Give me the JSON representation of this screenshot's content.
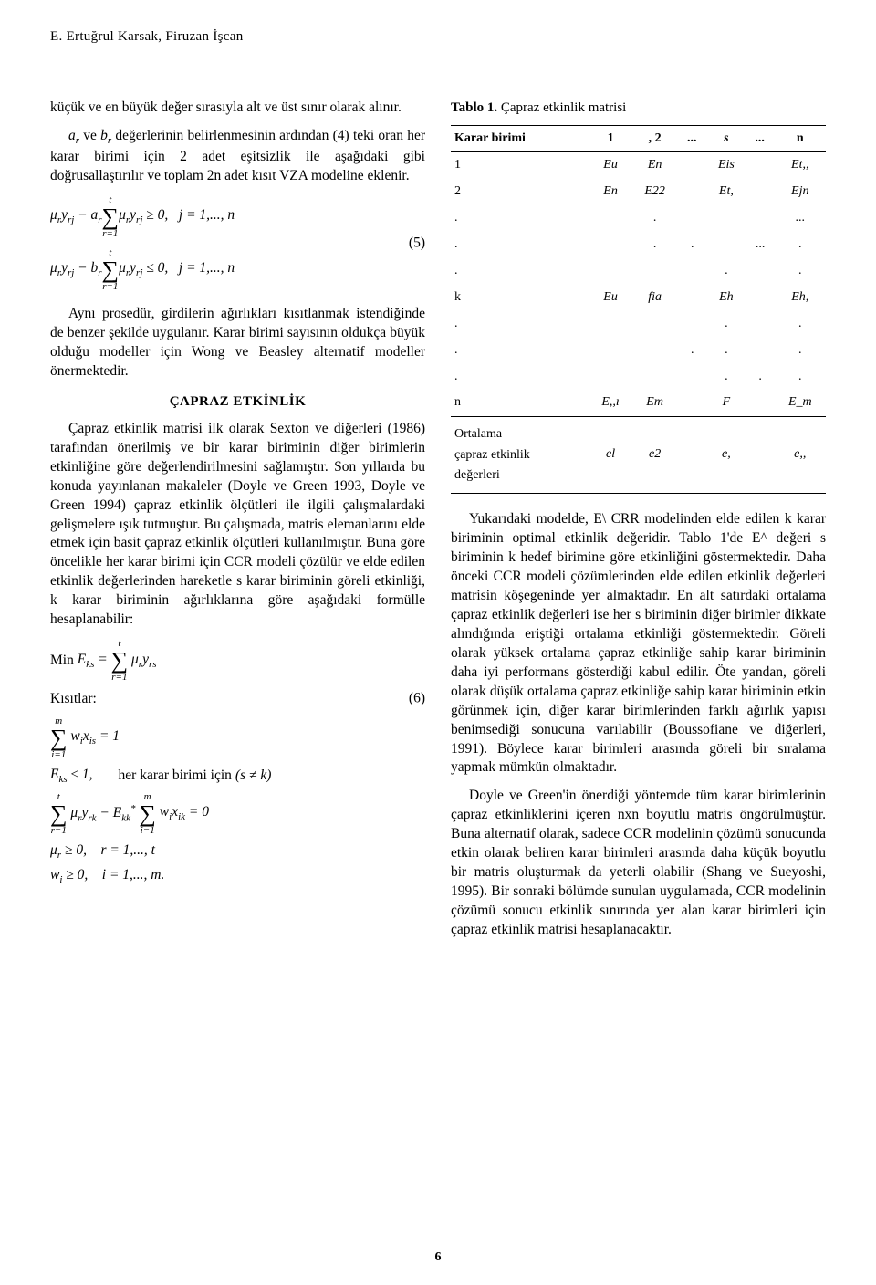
{
  "header": {
    "authors": "E. Ertuğrul Karsak, Firuzan İşcan"
  },
  "left": {
    "p1": "küçük ve en büyük değer sırasıyla alt ve üst sınır olarak alınır.",
    "p2_a": "a",
    "p2_b": "b",
    "p2_rest": " değerlerinin belirlenmesinin ardından (4) teki oran her karar birimi için 2 adet eşitsizlik ile aşağıdaki gibi doğrusallaştırılır ve toplam 2n adet kısıt VZA modeline eklenir.",
    "p2_ve": " ve ",
    "eq5_num": "(5)",
    "p3": "Aynı prosedür, girdilerin ağırlıkları kısıtlanmak istendiğinde de benzer şekilde uygulanır. Karar birimi sayısının oldukça büyük olduğu modeller için Wong ve Beasley alternatif modeller önermektedir.",
    "section": "ÇAPRAZ ETKİNLİK",
    "p4": "Çapraz etkinlik matrisi ilk olarak Sexton ve diğerleri (1986) tarafından önerilmiş ve bir karar biriminin diğer birimlerin etkinliğine göre değerlendirilmesini sağlamıştır. Son yıllarda bu konuda yayınlanan makaleler (Doyle ve Green 1993, Doyle ve Green 1994) çapraz etkinlik ölçütleri ile ilgili çalışmalardaki gelişmelere ışık tutmuştur. Bu çalışmada, matris elemanlarını elde etmek için basit çapraz etkinlik ölçütleri kullanılmıştır. Buna göre öncelikle her karar birimi için CCR modeli çözülür ve elde edilen etkinlik değerlerinden hareketle s karar biriminin göreli etkinliği, k karar biriminin ağırlıklarına göre aşağıdaki formülle hesaplanabilir:",
    "kisitlar": "Kısıtlar:",
    "eq6_num": "(6)",
    "her_karar": "her karar birimi için",
    "sne_k": "(s ≠ k)"
  },
  "right": {
    "table_caption_bold": "Tablo 1.",
    "table_caption_rest": " Çapraz etkinlik matrisi",
    "table": {
      "header": [
        "Karar birimi",
        "1",
        ", 2",
        "...",
        "s",
        "...",
        "n"
      ],
      "rows": [
        [
          "1",
          "Eu",
          "En",
          "",
          "Eis",
          "",
          "Et,,"
        ],
        [
          "2",
          "En",
          "E22",
          "",
          "Et,",
          "",
          "Ejn"
        ],
        [
          ".",
          "",
          ".",
          "",
          "",
          "",
          "..."
        ],
        [
          ".",
          "",
          ".",
          ".",
          "",
          "...",
          "."
        ],
        [
          ".",
          "",
          "",
          "",
          ".",
          "",
          "."
        ],
        [
          "k",
          "Eu",
          "fia",
          "",
          "Eh",
          "",
          "Eh,"
        ],
        [
          ".",
          "",
          "",
          "",
          ".",
          "",
          "."
        ],
        [
          ".",
          "",
          "",
          ".",
          ".",
          "",
          "."
        ],
        [
          ".",
          "",
          "",
          "",
          ".",
          ".",
          "."
        ],
        [
          "n",
          "E,,ı",
          "Em",
          "",
          "F",
          "",
          "E_m"
        ]
      ],
      "avg_label": "Ortalama çapraz etkinlik değerleri",
      "avg_row": [
        "el",
        "e2",
        "",
        "e,",
        "",
        "e,,"
      ]
    },
    "p1": "Yukarıdaki modelde, E\\ CRR modelinden elde edilen k karar biriminin optimal etkinlik değeridir. Tablo 1'de E^ değeri s biriminin k hedef birimine göre etkinliğini göstermektedir. Daha önceki CCR modeli çözümlerinden elde edilen etkinlik değerleri matrisin köşegeninde yer almaktadır. En alt satırdaki ortalama çapraz etkinlik değerleri ise her s biriminin diğer birimler dikkate alındığında eriştiği ortalama etkinliği göstermektedir. Göreli olarak yüksek ortalama çapraz etkinliğe sahip karar biriminin daha iyi performans gösterdiği kabul edilir. Öte yandan, göreli olarak düşük ortalama çapraz etkinliğe sahip karar biriminin etkin görünmek için, diğer karar birimlerinden farklı ağırlık yapısı benimsediği sonucuna varılabilir (Boussofiane ve diğerleri, 1991). Böylece karar birimleri arasında göreli bir sıralama yapmak mümkün olmaktadır.",
    "p2": "Doyle ve Green'in önerdiği yöntemde tüm karar birimlerinin çapraz etkinliklerini içeren nxn boyutlu matris öngörülmüştür. Buna alternatif olarak, sadece CCR modelinin çözümü sonucunda etkin olarak beliren karar birimleri arasında daha küçük boyutlu bir matris oluşturmak da yeterli olabilir (Shang ve Sueyoshi, 1995). Bir sonraki bölümde sunulan uygulamada, CCR modelinin çözümü sonucu etkinlik sınırında yer alan karar birimleri için çapraz etkinlik matrisi hesaplanacaktır."
  },
  "page_num": "6"
}
